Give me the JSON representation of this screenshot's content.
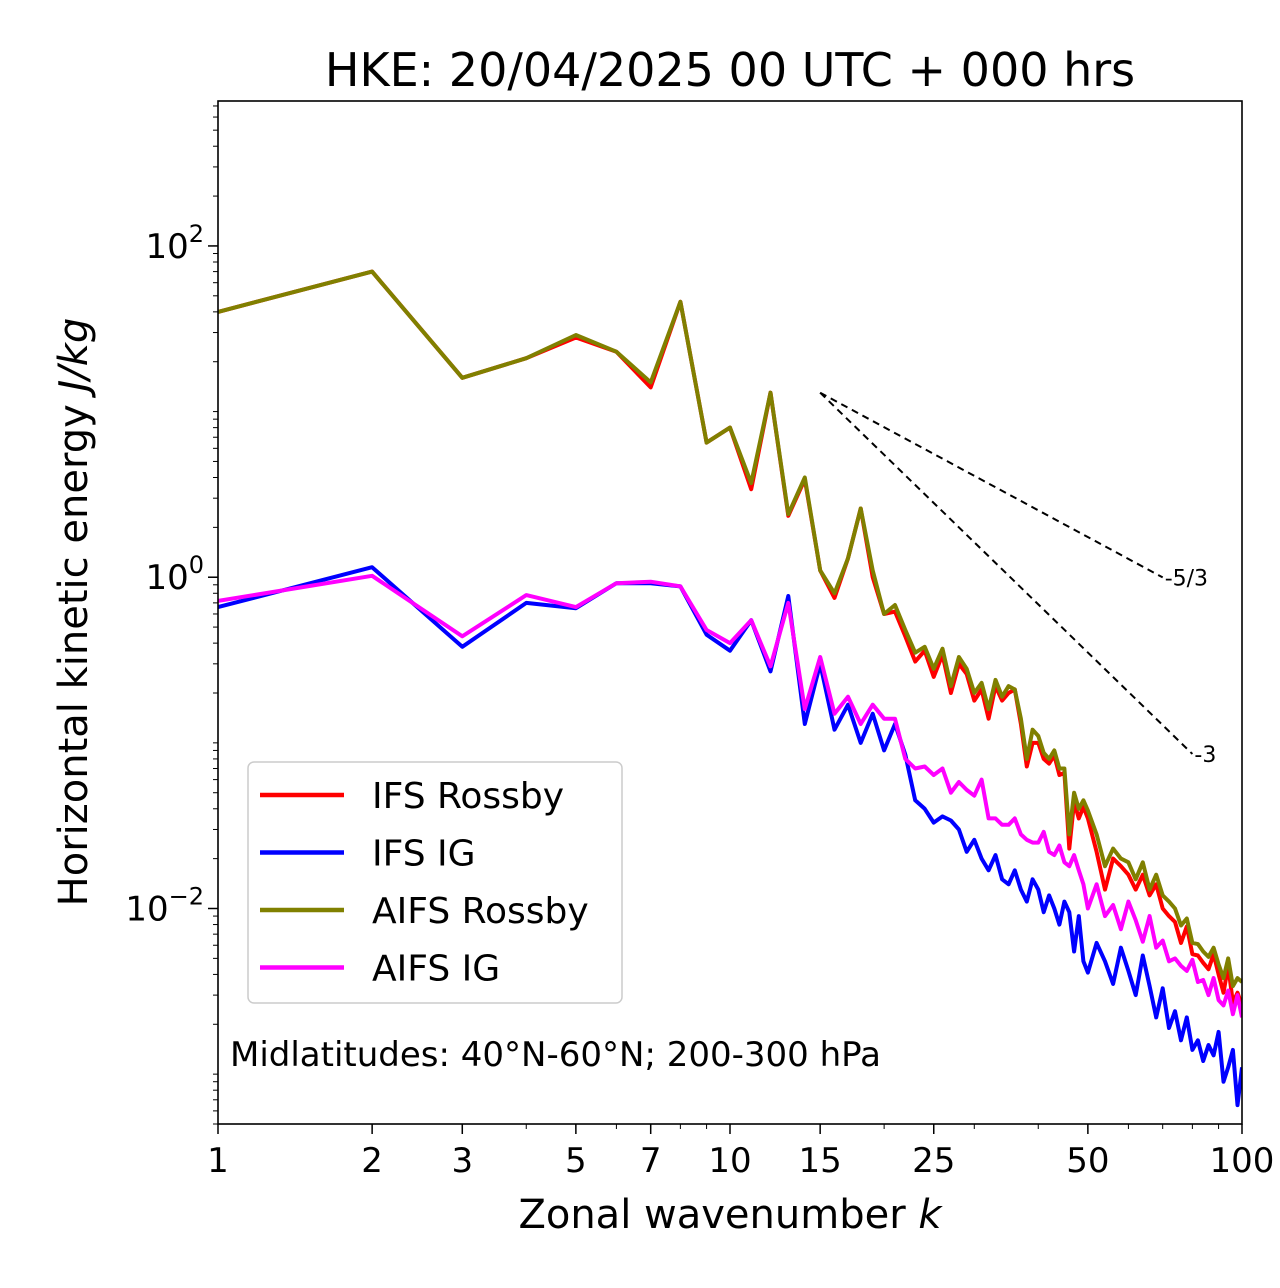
{
  "chart_data": {
    "type": "line",
    "title": "HKE: 20/04/2025 00 UTC + 000 hrs",
    "xlabel": "Zonal wavenumber",
    "xlabel_var": "k",
    "ylabel": "Horizontal kinetic energy",
    "ylabel_unit": "J/kg",
    "xscale": "log",
    "yscale": "log",
    "xlim": [
      1,
      100
    ],
    "ylim": [
      0.0005,
      750
    ],
    "x_ticks": [
      1,
      2,
      3,
      5,
      7,
      10,
      15,
      25,
      50,
      100
    ],
    "y_ticks": [
      {
        "value": 0.01,
        "base": "10",
        "exp": "−2"
      },
      {
        "value": 1,
        "base": "10",
        "exp": "0"
      },
      {
        "value": 100,
        "base": "10",
        "exp": "2"
      }
    ],
    "grid": false,
    "legend_position": "lower-left",
    "annotation": "Midlatitudes: 40°N-60°N; 200-300 hPa",
    "reference_lines": [
      {
        "label": "-5/3",
        "slope": -1.6667,
        "x": [
          15,
          70
        ],
        "y_start": 13
      },
      {
        "label": "-3",
        "slope": -3,
        "x": [
          15,
          80
        ],
        "y_start": 13
      }
    ],
    "series": [
      {
        "name": "IFS Rossby",
        "color": "#ff0000",
        "x": [
          1,
          2,
          3,
          4,
          5,
          6,
          7,
          8,
          9,
          10,
          11,
          12,
          13,
          14,
          15,
          16,
          17,
          18,
          19,
          20,
          21,
          22,
          23,
          24,
          25,
          26,
          27,
          28,
          29,
          30,
          31,
          32,
          33,
          34,
          35,
          36,
          37,
          38,
          39,
          40,
          41,
          42,
          43,
          44,
          45,
          46,
          47,
          48,
          49,
          50,
          52,
          54,
          56,
          58,
          60,
          62,
          64,
          66,
          68,
          70,
          72,
          74,
          76,
          78,
          80,
          82,
          84,
          86,
          88,
          90,
          92,
          94,
          96,
          98,
          100
        ],
        "y": [
          40,
          70,
          16,
          21,
          28,
          23,
          14,
          46,
          6.5,
          8.0,
          3.4,
          13,
          2.35,
          3.9,
          1.1,
          0.75,
          1.3,
          2.6,
          1.0,
          0.6,
          0.62,
          0.44,
          0.31,
          0.36,
          0.25,
          0.34,
          0.2,
          0.3,
          0.26,
          0.18,
          0.21,
          0.14,
          0.22,
          0.18,
          0.2,
          0.21,
          0.13,
          0.072,
          0.1,
          0.1,
          0.08,
          0.075,
          0.084,
          0.064,
          0.066,
          0.023,
          0.044,
          0.035,
          0.041,
          0.035,
          0.022,
          0.013,
          0.02,
          0.018,
          0.016,
          0.013,
          0.016,
          0.012,
          0.014,
          0.01,
          0.009,
          0.0083,
          0.0062,
          0.0078,
          0.0053,
          0.0052,
          0.0047,
          0.0043,
          0.0053,
          0.004,
          0.0031,
          0.0045,
          0.0027,
          0.0031,
          0.0026
        ]
      },
      {
        "name": "IFS IG",
        "color": "#0000ff",
        "x": [
          1,
          2,
          3,
          4,
          5,
          6,
          7,
          8,
          9,
          10,
          11,
          12,
          13,
          14,
          15,
          16,
          17,
          18,
          19,
          20,
          21,
          22,
          23,
          24,
          25,
          26,
          27,
          28,
          29,
          30,
          31,
          32,
          33,
          34,
          35,
          36,
          37,
          38,
          39,
          40,
          41,
          42,
          43,
          44,
          45,
          46,
          47,
          48,
          49,
          50,
          52,
          54,
          56,
          58,
          60,
          62,
          64,
          66,
          68,
          70,
          72,
          74,
          76,
          78,
          80,
          82,
          84,
          86,
          88,
          90,
          92,
          94,
          96,
          98,
          100
        ],
        "y": [
          0.66,
          1.15,
          0.38,
          0.7,
          0.65,
          0.92,
          0.92,
          0.88,
          0.45,
          0.36,
          0.55,
          0.27,
          0.77,
          0.13,
          0.3,
          0.12,
          0.17,
          0.1,
          0.15,
          0.09,
          0.13,
          0.085,
          0.045,
          0.04,
          0.033,
          0.036,
          0.034,
          0.03,
          0.022,
          0.026,
          0.02,
          0.017,
          0.021,
          0.015,
          0.014,
          0.017,
          0.013,
          0.011,
          0.015,
          0.013,
          0.0095,
          0.012,
          0.01,
          0.008,
          0.011,
          0.0095,
          0.0055,
          0.009,
          0.0048,
          0.0041,
          0.0062,
          0.0048,
          0.0035,
          0.0058,
          0.0042,
          0.003,
          0.0052,
          0.0034,
          0.0022,
          0.0033,
          0.0019,
          0.0024,
          0.0016,
          0.0022,
          0.0014,
          0.0016,
          0.0012,
          0.0015,
          0.0013,
          0.0018,
          0.0009,
          0.0011,
          0.0014,
          0.00065,
          0.0011
        ]
      },
      {
        "name": "AIFS Rossby",
        "color": "#808000",
        "x": [
          1,
          2,
          3,
          4,
          5,
          6,
          7,
          8,
          9,
          10,
          11,
          12,
          13,
          14,
          15,
          16,
          17,
          18,
          19,
          20,
          21,
          22,
          23,
          24,
          25,
          26,
          27,
          28,
          29,
          30,
          31,
          32,
          33,
          34,
          35,
          36,
          37,
          38,
          39,
          40,
          41,
          42,
          43,
          44,
          45,
          46,
          47,
          48,
          49,
          50,
          52,
          54,
          56,
          58,
          60,
          62,
          64,
          66,
          68,
          70,
          72,
          74,
          76,
          78,
          80,
          82,
          84,
          86,
          88,
          90,
          92,
          94,
          96,
          98,
          100
        ],
        "y": [
          40,
          70,
          16,
          21,
          29,
          23,
          15,
          46,
          6.5,
          8.0,
          3.7,
          13,
          2.4,
          4.0,
          1.1,
          0.8,
          1.3,
          2.6,
          1.1,
          0.6,
          0.68,
          0.48,
          0.35,
          0.38,
          0.28,
          0.37,
          0.22,
          0.33,
          0.28,
          0.2,
          0.23,
          0.16,
          0.24,
          0.19,
          0.22,
          0.21,
          0.14,
          0.08,
          0.12,
          0.11,
          0.087,
          0.08,
          0.09,
          0.07,
          0.07,
          0.028,
          0.05,
          0.04,
          0.045,
          0.039,
          0.028,
          0.018,
          0.023,
          0.02,
          0.019,
          0.015,
          0.019,
          0.013,
          0.016,
          0.012,
          0.011,
          0.01,
          0.0079,
          0.0087,
          0.0062,
          0.0061,
          0.0055,
          0.0051,
          0.0058,
          0.0046,
          0.0038,
          0.005,
          0.0034,
          0.0038,
          0.0036
        ]
      },
      {
        "name": "AIFS IG",
        "color": "#ff00ff",
        "x": [
          1,
          2,
          3,
          4,
          5,
          6,
          7,
          8,
          9,
          10,
          11,
          12,
          13,
          14,
          15,
          16,
          17,
          18,
          19,
          20,
          21,
          22,
          23,
          24,
          25,
          26,
          27,
          28,
          29,
          30,
          31,
          32,
          33,
          34,
          35,
          36,
          37,
          38,
          39,
          40,
          41,
          42,
          43,
          44,
          45,
          46,
          47,
          48,
          49,
          50,
          52,
          54,
          56,
          58,
          60,
          62,
          64,
          66,
          68,
          70,
          72,
          74,
          76,
          78,
          80,
          82,
          84,
          86,
          88,
          90,
          92,
          94,
          96,
          98,
          100
        ],
        "y": [
          0.72,
          1.02,
          0.44,
          0.78,
          0.66,
          0.92,
          0.94,
          0.88,
          0.48,
          0.4,
          0.55,
          0.29,
          0.7,
          0.16,
          0.33,
          0.15,
          0.19,
          0.13,
          0.17,
          0.14,
          0.14,
          0.08,
          0.07,
          0.072,
          0.064,
          0.07,
          0.05,
          0.058,
          0.052,
          0.048,
          0.06,
          0.035,
          0.035,
          0.032,
          0.032,
          0.035,
          0.028,
          0.026,
          0.025,
          0.025,
          0.029,
          0.022,
          0.021,
          0.024,
          0.019,
          0.018,
          0.021,
          0.017,
          0.014,
          0.01,
          0.014,
          0.009,
          0.0105,
          0.0075,
          0.011,
          0.0085,
          0.0063,
          0.009,
          0.0058,
          0.0064,
          0.0048,
          0.005,
          0.0045,
          0.0042,
          0.0049,
          0.0036,
          0.0037,
          0.003,
          0.0038,
          0.0028,
          0.0026,
          0.0032,
          0.0023,
          0.003,
          0.0022
        ]
      }
    ]
  }
}
